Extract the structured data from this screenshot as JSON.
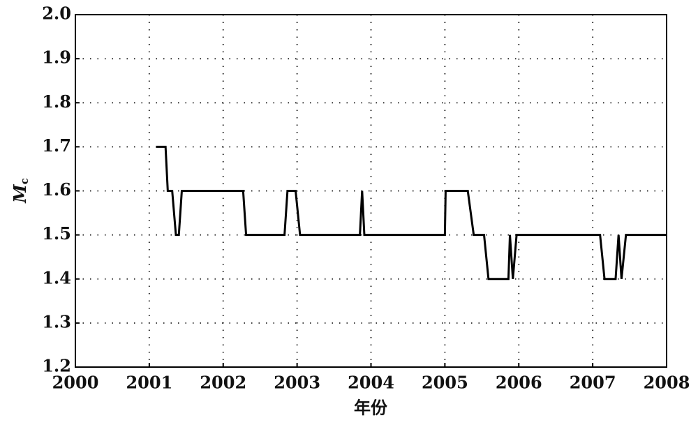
{
  "chart_data": {
    "type": "line",
    "x_label": "年份",
    "y_label": "M",
    "y_label_subscript": "c",
    "x": [
      2001.09,
      2001.22,
      2001.25,
      2001.31,
      2001.36,
      2001.4,
      2001.44,
      2002.27,
      2002.31,
      2002.83,
      2002.87,
      2002.98,
      2003.04,
      2003.85,
      2003.88,
      2003.91,
      2005.0,
      2005.01,
      2005.31,
      2005.39,
      2005.53,
      2005.59,
      2005.86,
      2005.88,
      2005.92,
      2005.97,
      2007.1,
      2007.16,
      2007.31,
      2007.35,
      2007.39,
      2007.45,
      2008.0
    ],
    "series": [
      {
        "color": "#000000",
        "values": [
          1.7,
          1.7,
          1.6,
          1.6,
          1.5,
          1.5,
          1.6,
          1.6,
          1.5,
          1.5,
          1.6,
          1.6,
          1.5,
          1.5,
          1.6,
          1.5,
          1.5,
          1.6,
          1.6,
          1.5,
          1.5,
          1.4,
          1.4,
          1.5,
          1.4,
          1.5,
          1.5,
          1.4,
          1.4,
          1.5,
          1.4,
          1.5,
          1.5
        ]
      }
    ],
    "xlim": [
      2000,
      2008
    ],
    "ylim": [
      1.2,
      2.0
    ],
    "xticks": [
      2000,
      2001,
      2002,
      2003,
      2004,
      2005,
      2006,
      2007,
      2008
    ],
    "yticks": [
      1.2,
      1.3,
      1.4,
      1.5,
      1.6,
      1.7,
      1.8,
      1.9,
      {
        "value": 2.0,
        "label": "2.0"
      }
    ],
    "grid": true
  }
}
